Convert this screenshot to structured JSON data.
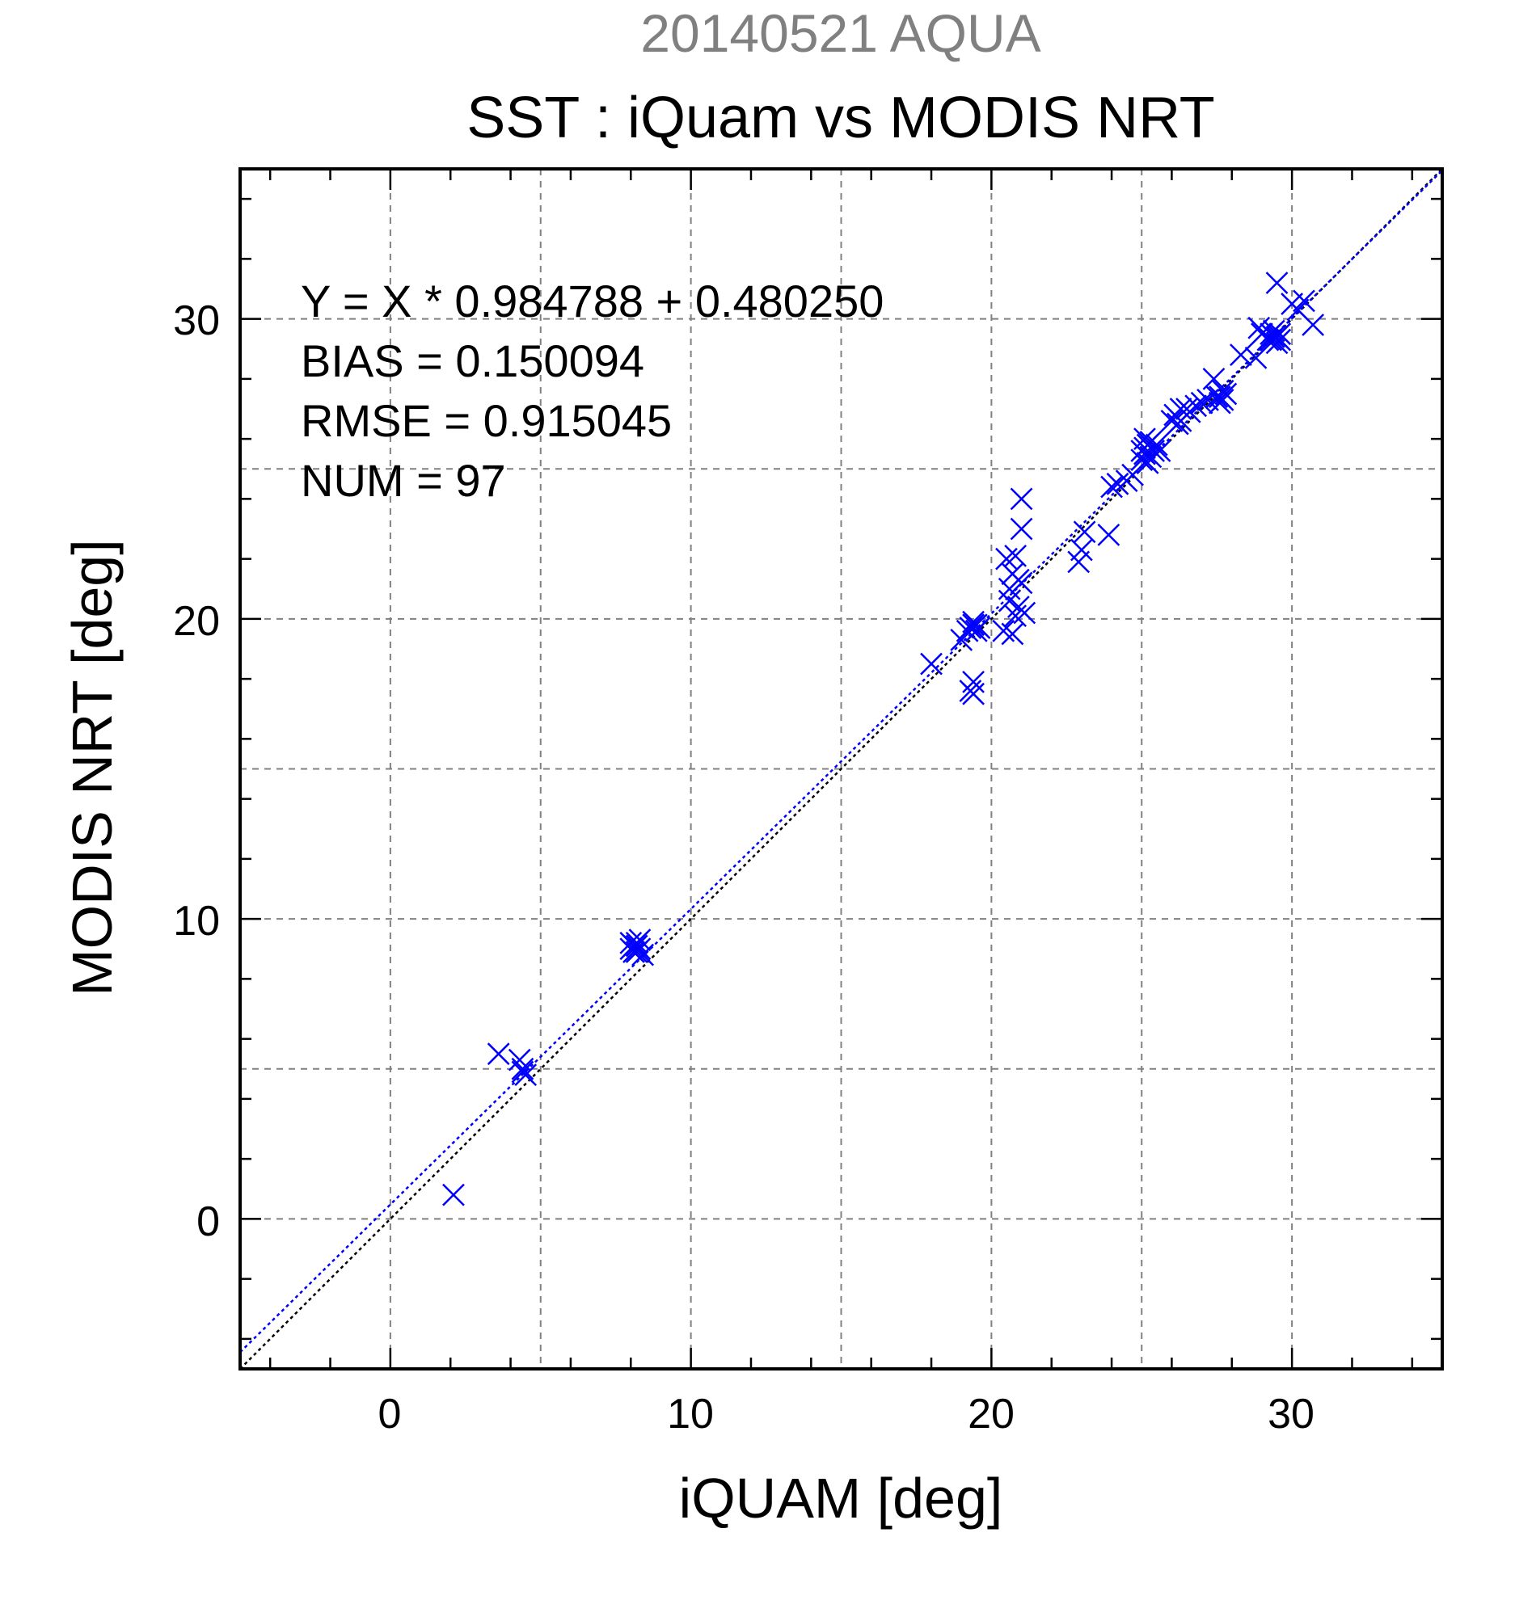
{
  "chart_data": {
    "type": "scatter",
    "title_top": "20140521 AQUA",
    "title": "SST : iQuam vs MODIS NRT",
    "xlabel": "iQUAM [deg]",
    "ylabel": "MODIS NRT [deg]",
    "xlim": [
      -5,
      35
    ],
    "ylim": [
      -5,
      35
    ],
    "x_ticks": [
      "0",
      "10",
      "20",
      "30"
    ],
    "y_ticks": [
      "0",
      "10",
      "20",
      "30"
    ],
    "grid": true,
    "stats": {
      "equation": "Y = X * 0.984788 + 0.480250",
      "bias": "BIAS = 0.150094",
      "rmse": "RMSE = 0.915045",
      "num": "NUM = 97"
    },
    "fit": {
      "slope": 0.984788,
      "intercept": 0.48025,
      "color": "#0000ff"
    },
    "identity_line_color": "#000000",
    "marker_color": "#0000ff",
    "points": [
      [
        2.1,
        0.8
      ],
      [
        3.6,
        5.5
      ],
      [
        4.3,
        5.3
      ],
      [
        4.4,
        4.9
      ],
      [
        4.5,
        4.8
      ],
      [
        8.0,
        9.0
      ],
      [
        8.1,
        9.1
      ],
      [
        8.2,
        9.2
      ],
      [
        8.2,
        8.9
      ],
      [
        8.3,
        9.0
      ],
      [
        8.3,
        9.3
      ],
      [
        8.4,
        8.8
      ],
      [
        8.1,
        8.9
      ],
      [
        8.2,
        9.1
      ],
      [
        18.0,
        18.5
      ],
      [
        19.0,
        19.3
      ],
      [
        19.3,
        19.7
      ],
      [
        19.4,
        19.8
      ],
      [
        19.5,
        19.6
      ],
      [
        19.6,
        19.7
      ],
      [
        19.4,
        19.9
      ],
      [
        19.5,
        19.8
      ],
      [
        19.4,
        17.9
      ],
      [
        19.4,
        17.5
      ],
      [
        19.3,
        17.6
      ],
      [
        20.4,
        19.6
      ],
      [
        20.7,
        19.5
      ],
      [
        20.8,
        20.1
      ],
      [
        20.9,
        20.4
      ],
      [
        20.6,
        21.0
      ],
      [
        20.7,
        21.5
      ],
      [
        20.5,
        22.0
      ],
      [
        20.8,
        22.1
      ],
      [
        20.9,
        21.3
      ],
      [
        21.0,
        21.2
      ],
      [
        21.0,
        23.0
      ],
      [
        21.0,
        24.0
      ],
      [
        22.9,
        21.9
      ],
      [
        23.0,
        22.3
      ],
      [
        23.1,
        22.9
      ],
      [
        23.9,
        22.8
      ],
      [
        24.2,
        24.5
      ],
      [
        24.5,
        24.6
      ],
      [
        24.7,
        24.8
      ],
      [
        25.0,
        25.3
      ],
      [
        25.1,
        25.5
      ],
      [
        25.1,
        25.7
      ],
      [
        25.2,
        25.8
      ],
      [
        25.3,
        25.9
      ],
      [
        25.1,
        26.0
      ],
      [
        25.4,
        25.6
      ],
      [
        25.3,
        25.4
      ],
      [
        25.6,
        25.6
      ],
      [
        25.2,
        25.2
      ],
      [
        25.5,
        25.8
      ],
      [
        26.0,
        26.6
      ],
      [
        26.1,
        26.8
      ],
      [
        26.3,
        27.0
      ],
      [
        26.5,
        27.0
      ],
      [
        26.3,
        26.6
      ],
      [
        26.6,
        26.9
      ],
      [
        26.8,
        27.1
      ],
      [
        27.0,
        27.2
      ],
      [
        27.2,
        27.3
      ],
      [
        27.4,
        28.0
      ],
      [
        27.5,
        27.4
      ],
      [
        27.6,
        27.4
      ],
      [
        27.7,
        27.3
      ],
      [
        27.8,
        27.5
      ],
      [
        27.6,
        27.2
      ],
      [
        28.3,
        28.8
      ],
      [
        28.8,
        28.7
      ],
      [
        28.9,
        29.7
      ],
      [
        29.0,
        29.5
      ],
      [
        29.2,
        29.3
      ],
      [
        29.3,
        29.5
      ],
      [
        29.4,
        29.4
      ],
      [
        29.5,
        29.2
      ],
      [
        29.6,
        29.3
      ],
      [
        29.4,
        29.6
      ],
      [
        29.6,
        29.5
      ],
      [
        29.5,
        31.2
      ],
      [
        30.0,
        30.5
      ],
      [
        30.2,
        30.3
      ],
      [
        30.4,
        30.6
      ],
      [
        30.7,
        29.8
      ],
      [
        29.3,
        29.3
      ],
      [
        29.5,
        29.4
      ],
      [
        27.7,
        27.6
      ],
      [
        26.2,
        26.5
      ],
      [
        25.0,
        25.6
      ],
      [
        20.6,
        20.6
      ],
      [
        19.2,
        19.6
      ],
      [
        8.0,
        9.2
      ],
      [
        4.4,
        5.0
      ],
      [
        21.1,
        20.2
      ],
      [
        24.0,
        24.4
      ]
    ]
  }
}
